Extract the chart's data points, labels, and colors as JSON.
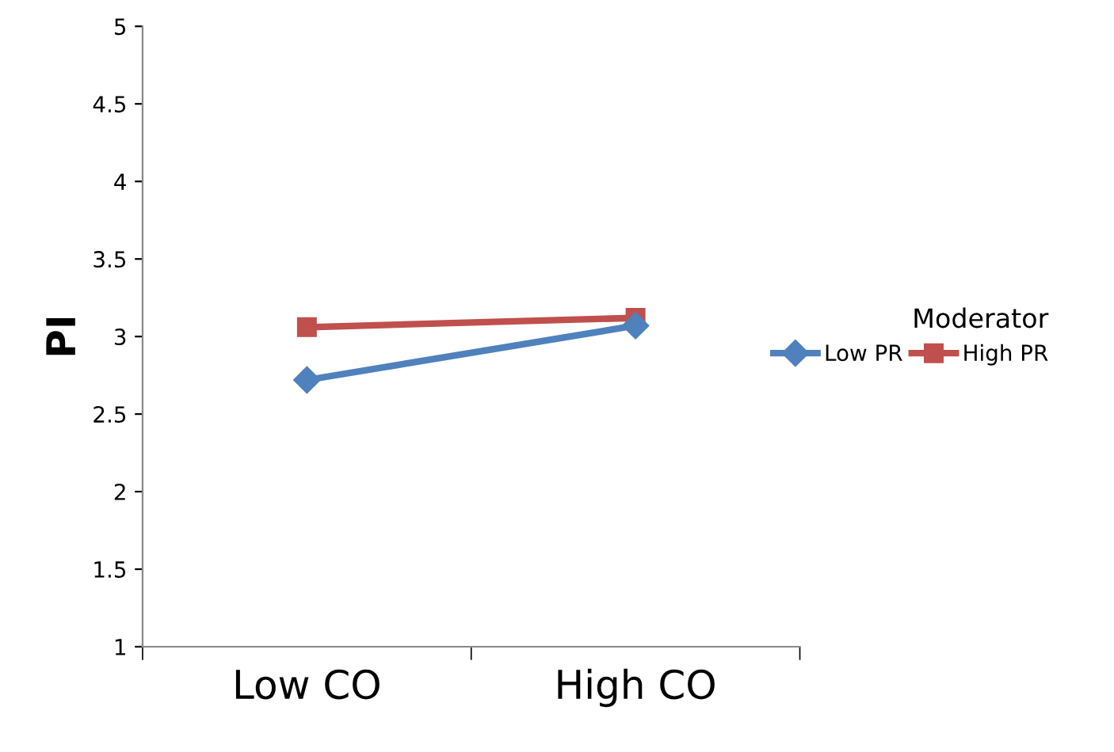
{
  "chart_data": {
    "type": "line",
    "ylabel": "PI",
    "legend_title": "Moderator",
    "categories": [
      "Low CO",
      "High CO"
    ],
    "series": [
      {
        "name": "Low PR",
        "color": "#4f81bd",
        "marker": "diamond",
        "values": [
          2.72,
          3.07
        ]
      },
      {
        "name": "High PR",
        "color": "#c0504d",
        "marker": "square",
        "values": [
          3.06,
          3.12
        ]
      }
    ],
    "ylim": [
      1,
      5
    ],
    "yticks": [
      1,
      1.5,
      2,
      2.5,
      3,
      3.5,
      4,
      4.5,
      5
    ],
    "grid": false,
    "legend": "right"
  }
}
